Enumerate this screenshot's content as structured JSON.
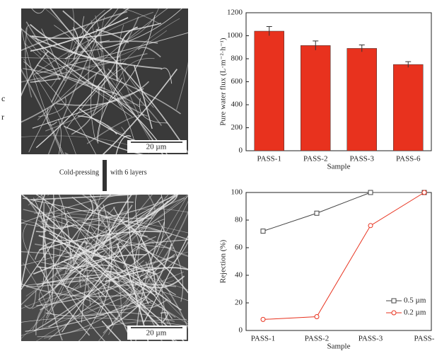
{
  "figure": {
    "scale_bars": [
      "20 µm",
      "20 µm"
    ],
    "process_labels": [
      "Cold-pressing",
      "with 6 layers"
    ],
    "edge_text": [
      "c",
      "r"
    ]
  },
  "chart_data": [
    {
      "type": "bar",
      "ylabel": "Pure water flux (L·m⁻²·h⁻¹)",
      "xlabel": "Sample",
      "categories": [
        "PASS-1",
        "PASS-2",
        "PASS-3",
        "PASS-6"
      ],
      "values": [
        1040,
        915,
        890,
        750
      ],
      "errors": [
        40,
        40,
        30,
        25
      ],
      "color": "#e8321e",
      "ylim": [
        0,
        1200
      ],
      "yticks": [
        0,
        200,
        400,
        600,
        800,
        1000,
        1200
      ]
    },
    {
      "type": "line",
      "ylabel": "Rejection (%)",
      "xlabel": "Sample",
      "categories": [
        "PASS-1",
        "PASS-2",
        "PASS-3",
        "PASS-"
      ],
      "series": [
        {
          "name": "0.5 µm",
          "color": "#444444",
          "marker": "square",
          "values": [
            72,
            85,
            100,
            100
          ]
        },
        {
          "name": "0.2 µm",
          "color": "#e8321e",
          "marker": "circle",
          "values": [
            8,
            10,
            76,
            100
          ]
        }
      ],
      "ylim": [
        0,
        100
      ],
      "yticks": [
        0,
        20,
        40,
        60,
        80,
        100
      ],
      "legend": "lower right"
    }
  ]
}
